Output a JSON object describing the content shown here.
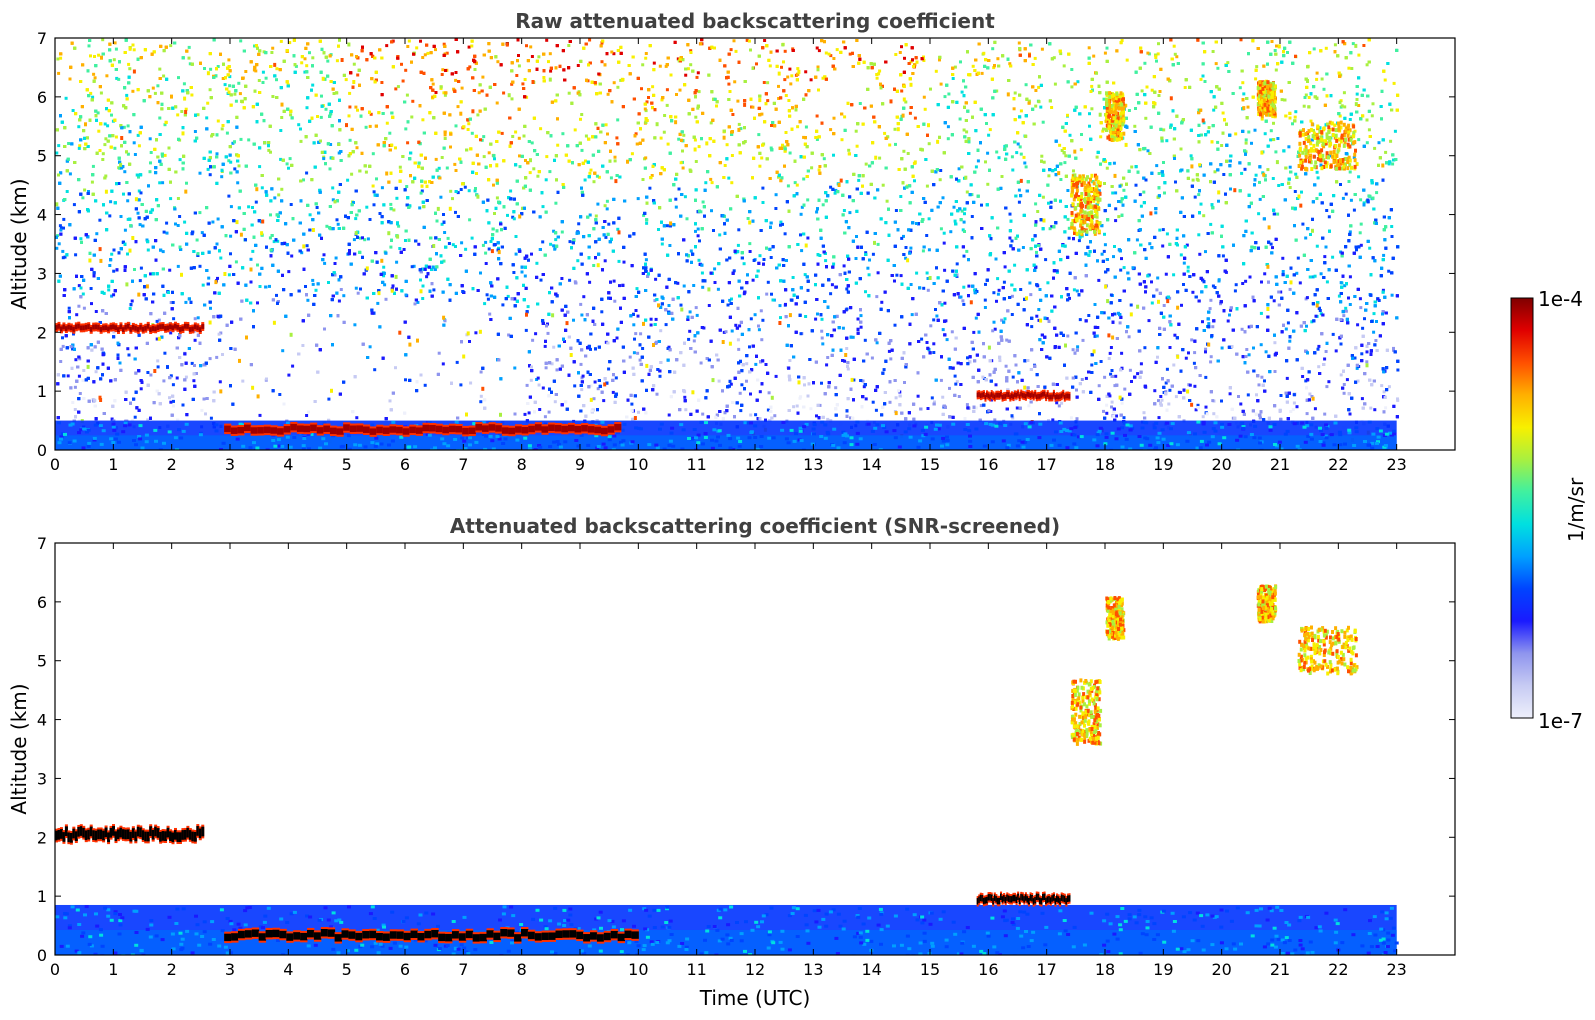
{
  "chart_data": [
    {
      "type": "heatmap",
      "title": "Raw attenuated backscattering coefficient",
      "xlabel": "",
      "ylabel": "Altitude (km)",
      "xlim": [
        0,
        24
      ],
      "ylim": [
        0,
        7
      ],
      "xticks": [
        "0",
        "1",
        "2",
        "3",
        "4",
        "5",
        "6",
        "7",
        "8",
        "9",
        "10",
        "11",
        "12",
        "13",
        "14",
        "15",
        "16",
        "17",
        "18",
        "19",
        "20",
        "21",
        "22",
        "23"
      ],
      "yticks": [
        "0",
        "1",
        "2",
        "3",
        "4",
        "5",
        "6",
        "7"
      ],
      "data_extent_hours": [
        0,
        23
      ],
      "layers": [
        {
          "feature": "noisy background, increasing signal with altitude",
          "x": [
            0,
            23
          ],
          "y": [
            0,
            7
          ]
        },
        {
          "feature": "boundary layer",
          "x": [
            0,
            23
          ],
          "y": [
            0,
            0.5
          ]
        },
        {
          "feature": "cloud layer",
          "x": [
            0,
            2.55
          ],
          "y": [
            2.0,
            2.15
          ],
          "level": "1e-4"
        },
        {
          "feature": "low cloud",
          "x": [
            2.9,
            9.7
          ],
          "y": [
            0.25,
            0.45
          ],
          "level": "1e-4"
        },
        {
          "feature": "low cloud",
          "x": [
            15.8,
            17.4
          ],
          "y": [
            0.85,
            1.0
          ],
          "level": "1e-4"
        },
        {
          "feature": "cloud",
          "x": [
            17.4,
            17.9
          ],
          "y": [
            3.7,
            4.7
          ]
        },
        {
          "feature": "cloud",
          "x": [
            18.0,
            18.3
          ],
          "y": [
            5.3,
            6.1
          ]
        },
        {
          "feature": "cloud",
          "x": [
            20.6,
            20.9
          ],
          "y": [
            5.7,
            6.3
          ]
        },
        {
          "feature": "cloud",
          "x": [
            21.3,
            22.3
          ],
          "y": [
            4.8,
            5.6
          ]
        }
      ]
    },
    {
      "type": "heatmap",
      "title": "Attenuated backscattering coefficient (SNR-screened)",
      "xlabel": "Time (UTC)",
      "ylabel": "Altitude (km)",
      "xlim": [
        0,
        24
      ],
      "ylim": [
        0,
        7
      ],
      "xticks": [
        "0",
        "1",
        "2",
        "3",
        "4",
        "5",
        "6",
        "7",
        "8",
        "9",
        "10",
        "11",
        "12",
        "13",
        "14",
        "15",
        "16",
        "17",
        "18",
        "19",
        "20",
        "21",
        "22",
        "23"
      ],
      "yticks": [
        "0",
        "1",
        "2",
        "3",
        "4",
        "5",
        "6",
        "7"
      ],
      "data_extent_hours": [
        0,
        23
      ],
      "layers": [
        {
          "feature": "boundary layer",
          "x": [
            0,
            23
          ],
          "y": [
            0,
            0.85
          ]
        },
        {
          "feature": "cloud layer",
          "x": [
            0,
            2.55
          ],
          "y": [
            1.9,
            2.2
          ],
          "level": "1e-4"
        },
        {
          "feature": "low cloud",
          "x": [
            2.9,
            10.0
          ],
          "y": [
            0.22,
            0.45
          ],
          "level": "1e-4"
        },
        {
          "feature": "low cloud",
          "x": [
            15.8,
            17.4
          ],
          "y": [
            0.85,
            1.05
          ],
          "level": "1e-4"
        },
        {
          "feature": "cloud",
          "x": [
            17.4,
            17.9
          ],
          "y": [
            3.6,
            4.7
          ]
        },
        {
          "feature": "cloud",
          "x": [
            18.0,
            18.3
          ],
          "y": [
            5.4,
            6.1
          ]
        },
        {
          "feature": "cloud",
          "x": [
            20.6,
            20.9
          ],
          "y": [
            5.7,
            6.3
          ]
        },
        {
          "feature": "cloud",
          "x": [
            21.3,
            22.3
          ],
          "y": [
            4.8,
            5.6
          ]
        }
      ]
    }
  ],
  "colorbar": {
    "label": "1/m/sr",
    "max_label": "1e-4",
    "min_label": "1e-7",
    "colormap": [
      "#eef0fb",
      "#c7cbf3",
      "#8f95ee",
      "#1a1aff",
      "#0044ff",
      "#00a0ff",
      "#00e0e0",
      "#40f0a0",
      "#a8f040",
      "#f8f000",
      "#ffb000",
      "#ff5000",
      "#e00000",
      "#800000"
    ]
  }
}
